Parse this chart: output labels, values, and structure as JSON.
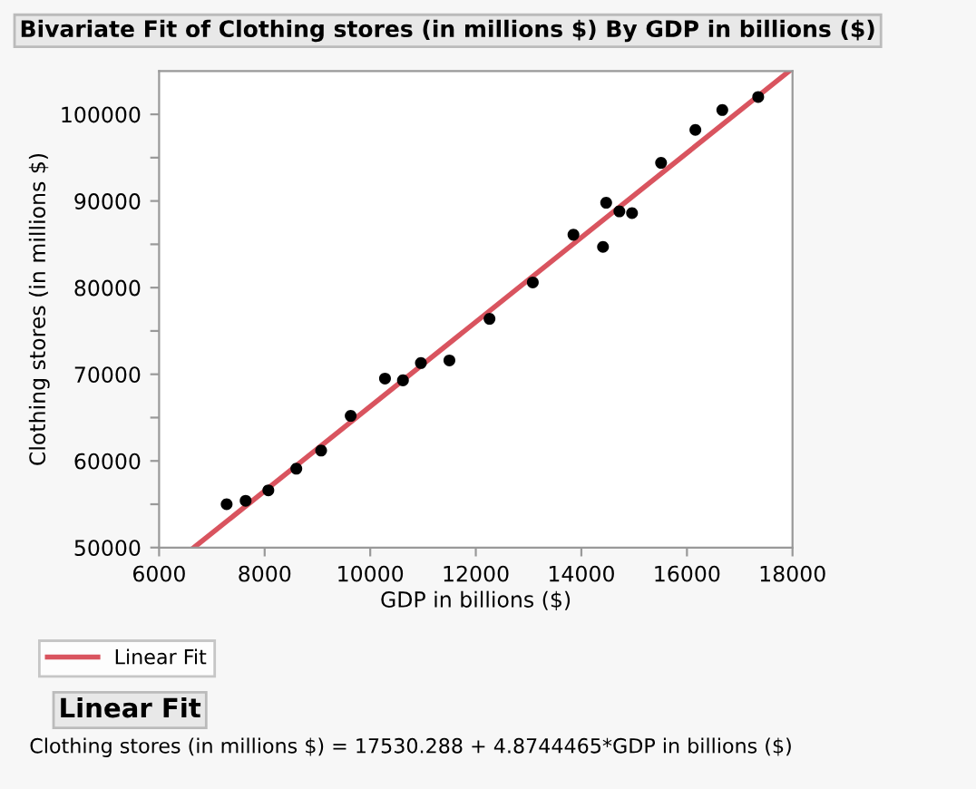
{
  "chart_data": {
    "type": "scatter",
    "title": "Bivariate Fit of Clothing stores (in millions $) By GDP in billions ($)",
    "xlabel": "GDP in billions ($)",
    "ylabel": "Clothing stores (in millions $)",
    "xlim": [
      6000,
      18000
    ],
    "xticks": [
      6000,
      8000,
      10000,
      12000,
      14000,
      16000,
      18000
    ],
    "ylim": [
      50000,
      105000
    ],
    "yticks": [
      50000,
      {
        "value": 55000,
        "label": null
      },
      60000,
      {
        "value": 65000,
        "label": null
      },
      70000,
      {
        "value": 75000,
        "label": null
      },
      80000,
      {
        "value": 85000,
        "label": null
      },
      90000,
      {
        "value": 95000,
        "label": null
      },
      100000
    ],
    "grid": false,
    "legend": "bottom left",
    "series": [
      {
        "color": "#000000",
        "marker": "circle",
        "x": [
          7280,
          7640,
          8070,
          8600,
          9070,
          9630,
          10280,
          10620,
          10960,
          11500,
          12260,
          13080,
          13850,
          14410,
          14470,
          14720,
          14960,
          15510,
          16160,
          16670,
          17350
        ],
        "values": [
          55000,
          55400,
          56600,
          59100,
          61200,
          65200,
          69500,
          69300,
          71300,
          71600,
          76400,
          80600,
          86100,
          84700,
          89800,
          88800,
          88600,
          94400,
          98200,
          100500,
          102000
        ]
      },
      {
        "type": "line",
        "name": "Linear Fit",
        "color": "#d9545f",
        "marker": "none",
        "x": [
          6660,
          17940
        ],
        "values": [
          50000,
          105000
        ]
      }
    ],
    "annotations": [
      "Linear Fit",
      "Clothing stores (in millions $) = 17530.288 + 4.8744465*GDP in billions ($)"
    ]
  }
}
